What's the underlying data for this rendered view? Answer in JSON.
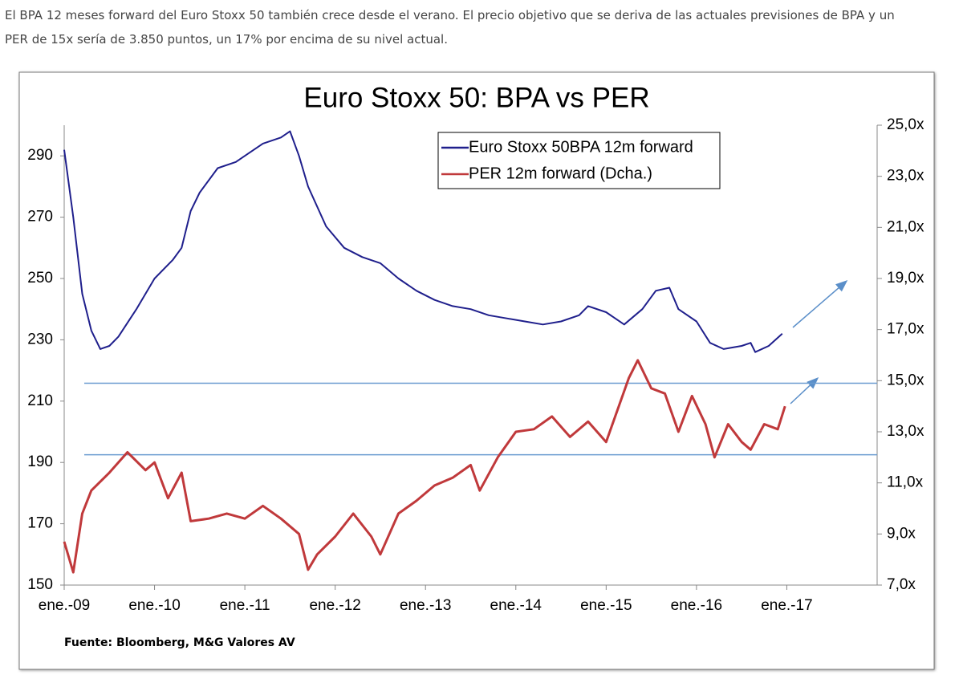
{
  "article": {
    "paragraph": [
      "El BPA 12 meses forward del Euro Stoxx 50 también crece desde el verano. El precio objetivo que se deriva de las actuales previsiones de BPA y un",
      "PER de 15x sería de 3.850 puntos, un 17% por encima de su nivel actual."
    ]
  },
  "chart_data": {
    "type": "line",
    "title": "Euro Stoxx 50: BPA vs PER",
    "source": "Fuente: Bloomberg, M&G Valores AV",
    "xlim": [
      2009,
      2018
    ],
    "xticks": [
      {
        "value": 2009,
        "label": "ene.-09"
      },
      {
        "value": 2010,
        "label": "ene.-10"
      },
      {
        "value": 2011,
        "label": "ene.-11"
      },
      {
        "value": 2012,
        "label": "ene.-12"
      },
      {
        "value": 2013,
        "label": "ene.-13"
      },
      {
        "value": 2014,
        "label": "ene.-14"
      },
      {
        "value": 2015,
        "label": "ene.-15"
      },
      {
        "value": 2016,
        "label": "ene.-16"
      },
      {
        "value": 2017,
        "label": "ene.-17"
      }
    ],
    "ylim": [
      150,
      300
    ],
    "yticks": [
      150,
      170,
      190,
      210,
      230,
      250,
      270,
      290
    ],
    "y2lim": [
      7,
      25
    ],
    "y2ticks": [
      {
        "value": 7,
        "label": "7,0x"
      },
      {
        "value": 9,
        "label": "9,0x"
      },
      {
        "value": 11,
        "label": "11,0x"
      },
      {
        "value": 13,
        "label": "13,0x"
      },
      {
        "value": 15,
        "label": "15,0x"
      },
      {
        "value": 17,
        "label": "17,0x"
      },
      {
        "value": 19,
        "label": "19,0x"
      },
      {
        "value": 21,
        "label": "21,0x"
      },
      {
        "value": 23,
        "label": "23,0x"
      },
      {
        "value": 25,
        "label": "25,0x"
      }
    ],
    "legend": "top-right",
    "series": [
      {
        "name": "Euro Stoxx 50BPA 12m forward",
        "color": "#1f1f8c",
        "x": [
          2009.0,
          2009.1,
          2009.2,
          2009.3,
          2009.4,
          2009.5,
          2009.6,
          2009.8,
          2010.0,
          2010.2,
          2010.3,
          2010.4,
          2010.5,
          2010.7,
          2010.9,
          2011.0,
          2011.2,
          2011.4,
          2011.5,
          2011.6,
          2011.7,
          2011.9,
          2012.1,
          2012.3,
          2012.5,
          2012.7,
          2012.9,
          2013.1,
          2013.3,
          2013.5,
          2013.7,
          2013.9,
          2014.1,
          2014.3,
          2014.5,
          2014.7,
          2014.8,
          2015.0,
          2015.2,
          2015.4,
          2015.55,
          2015.7,
          2015.8,
          2016.0,
          2016.15,
          2016.3,
          2016.5,
          2016.6,
          2016.65,
          2016.8,
          2016.95
        ],
        "values": [
          292,
          270,
          245,
          233,
          227,
          228,
          231,
          240,
          250,
          256,
          260,
          272,
          278,
          286,
          288,
          290,
          294,
          296,
          298,
          290,
          280,
          267,
          260,
          257,
          255,
          250,
          246,
          243,
          241,
          240,
          238,
          237,
          236,
          235,
          236,
          238,
          241,
          239,
          235,
          240,
          246,
          247,
          240,
          236,
          229,
          227,
          228,
          229,
          226,
          228,
          232
        ]
      },
      {
        "name": "PER 12m forward (Dcha.)",
        "color": "#c0393b",
        "axis": "y2",
        "x": [
          2009.0,
          2009.1,
          2009.2,
          2009.3,
          2009.5,
          2009.7,
          2009.9,
          2010.0,
          2010.15,
          2010.3,
          2010.4,
          2010.6,
          2010.8,
          2011.0,
          2011.2,
          2011.4,
          2011.6,
          2011.7,
          2011.8,
          2012.0,
          2012.2,
          2012.4,
          2012.5,
          2012.7,
          2012.9,
          2013.1,
          2013.3,
          2013.5,
          2013.6,
          2013.8,
          2014.0,
          2014.2,
          2014.4,
          2014.6,
          2014.8,
          2015.0,
          2015.1,
          2015.25,
          2015.35,
          2015.5,
          2015.65,
          2015.8,
          2015.95,
          2016.1,
          2016.2,
          2016.35,
          2016.5,
          2016.6,
          2016.75,
          2016.9,
          2016.98
        ],
        "values": [
          8.7,
          7.5,
          9.8,
          10.7,
          11.4,
          12.2,
          11.5,
          11.8,
          10.4,
          11.4,
          9.5,
          9.6,
          9.8,
          9.6,
          10.1,
          9.6,
          9.0,
          7.6,
          8.2,
          8.9,
          9.8,
          8.9,
          8.2,
          9.8,
          10.3,
          10.9,
          11.2,
          11.7,
          10.7,
          12.0,
          13.0,
          13.1,
          13.6,
          12.8,
          13.4,
          12.6,
          13.6,
          15.1,
          15.8,
          14.7,
          14.5,
          13.0,
          14.4,
          13.3,
          12.0,
          13.3,
          12.6,
          12.3,
          13.3,
          13.1,
          14.0
        ]
      }
    ],
    "reference_lines": {
      "axis": "y2",
      "color": "#6a9bd0",
      "values": [
        12.1,
        14.9
      ]
    }
  }
}
